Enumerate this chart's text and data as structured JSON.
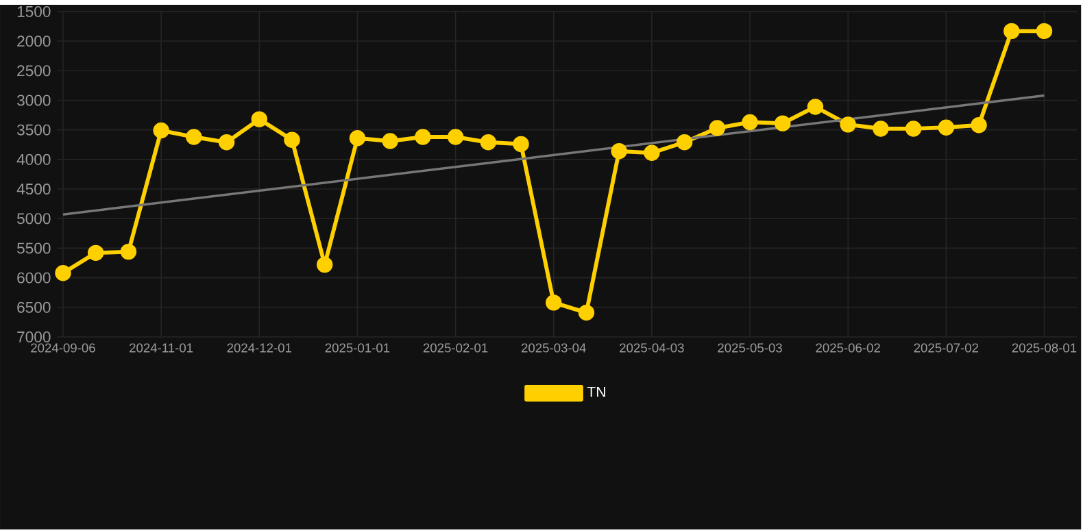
{
  "chart_data": {
    "type": "line",
    "categories": [
      "2024-09-06",
      null,
      null,
      "2024-11-01",
      null,
      null,
      "2024-12-01",
      null,
      null,
      "2025-01-01",
      null,
      null,
      "2025-02-01",
      null,
      null,
      "2025-03-04",
      null,
      null,
      "2025-04-03",
      null,
      null,
      "2025-05-03",
      null,
      null,
      "2025-06-02",
      null,
      null,
      "2025-07-02",
      null,
      null,
      "2025-08-01"
    ],
    "series": [
      {
        "name": "TN",
        "color": "#ffd000",
        "marker": "circle",
        "values": [
          5920,
          5580,
          5560,
          3510,
          3620,
          3710,
          3320,
          3670,
          5780,
          3640,
          3690,
          3620,
          3620,
          3710,
          3740,
          6420,
          6590,
          3860,
          3890,
          3710,
          3470,
          3370,
          3390,
          3110,
          3410,
          3480,
          3480,
          3460,
          3420,
          1830,
          1830
        ]
      },
      {
        "type": "line",
        "color": "#777777",
        "marker": "none",
        "values": [
          4930,
          null,
          null,
          null,
          null,
          null,
          null,
          null,
          null,
          null,
          null,
          null,
          null,
          null,
          null,
          null,
          null,
          null,
          null,
          null,
          null,
          null,
          null,
          null,
          null,
          null,
          null,
          null,
          null,
          null,
          2920
        ]
      }
    ],
    "ylim": [
      7000,
      1500
    ],
    "yticks": [
      1500,
      2000,
      2500,
      3000,
      3500,
      4000,
      4500,
      5000,
      5500,
      6000,
      6500,
      7000
    ],
    "grid": true,
    "legend": "bottom"
  }
}
